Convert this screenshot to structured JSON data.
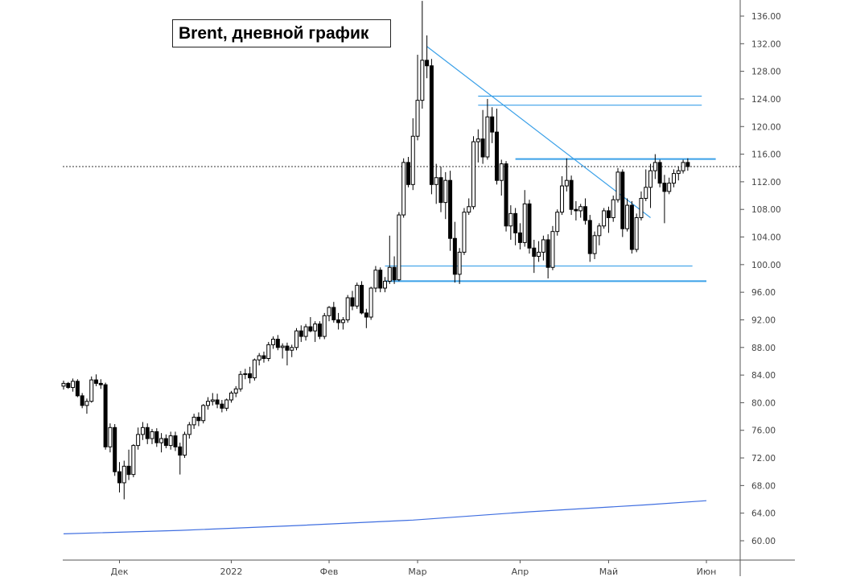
{
  "chart_data": {
    "type": "candlestick",
    "title": "Brent, дневной график",
    "y_ticks": [
      "60.00",
      "64.00",
      "68.00",
      "72.00",
      "76.00",
      "80.00",
      "84.00",
      "88.00",
      "92.00",
      "96.00",
      "100.00",
      "104.00",
      "108.00",
      "112.00",
      "116.00",
      "120.00",
      "124.00",
      "128.00",
      "132.00",
      "136.00"
    ],
    "ylim": [
      57.5,
      138.5
    ],
    "x_ticks": [
      {
        "label": "Дек",
        "index": 12
      },
      {
        "label": "2022",
        "index": 36
      },
      {
        "label": "Фев",
        "index": 57
      },
      {
        "label": "Мар",
        "index": 76
      },
      {
        "label": "Апр",
        "index": 98
      },
      {
        "label": "Май",
        "index": 117
      },
      {
        "label": "Июн",
        "index": 138
      }
    ],
    "last_price": 114.2,
    "ohlc": [
      [
        82.4,
        83.2,
        81.9,
        82.8
      ],
      [
        82.8,
        83.0,
        82.0,
        82.2
      ],
      [
        82.2,
        83.5,
        81.6,
        83.1
      ],
      [
        83.1,
        83.4,
        80.8,
        81.0
      ],
      [
        81.0,
        81.4,
        79.2,
        79.6
      ],
      [
        79.6,
        80.6,
        78.4,
        80.2
      ],
      [
        80.2,
        83.8,
        80.0,
        83.3
      ],
      [
        83.3,
        84.1,
        82.4,
        82.8
      ],
      [
        82.8,
        83.4,
        82.0,
        82.6
      ],
      [
        82.6,
        82.9,
        73.2,
        73.6
      ],
      [
        73.6,
        77.0,
        72.8,
        76.4
      ],
      [
        76.4,
        76.9,
        69.4,
        70.0
      ],
      [
        70.0,
        71.4,
        67.0,
        68.4
      ],
      [
        68.4,
        71.6,
        66.0,
        70.8
      ],
      [
        70.8,
        73.2,
        68.8,
        69.6
      ],
      [
        69.6,
        74.0,
        69.2,
        73.8
      ],
      [
        73.8,
        76.4,
        73.2,
        75.4
      ],
      [
        75.4,
        77.2,
        74.6,
        76.4
      ],
      [
        76.4,
        77.0,
        74.0,
        74.8
      ],
      [
        74.8,
        76.2,
        74.0,
        75.8
      ],
      [
        75.8,
        76.3,
        73.6,
        74.2
      ],
      [
        74.2,
        75.6,
        72.8,
        74.8
      ],
      [
        74.8,
        75.4,
        73.4,
        73.8
      ],
      [
        73.8,
        75.8,
        73.2,
        75.2
      ],
      [
        75.2,
        75.8,
        73.0,
        73.6
      ],
      [
        73.6,
        74.2,
        69.6,
        72.4
      ],
      [
        72.4,
        75.8,
        72.0,
        75.4
      ],
      [
        75.4,
        77.2,
        74.8,
        76.8
      ],
      [
        76.8,
        78.4,
        76.2,
        77.9
      ],
      [
        77.9,
        78.6,
        76.6,
        77.4
      ],
      [
        77.4,
        79.8,
        77.0,
        79.6
      ],
      [
        79.6,
        80.8,
        79.0,
        80.2
      ],
      [
        80.2,
        81.4,
        79.6,
        80.4
      ],
      [
        80.4,
        81.3,
        79.2,
        79.8
      ],
      [
        79.8,
        80.4,
        78.6,
        79.2
      ],
      [
        79.2,
        80.6,
        78.8,
        80.4
      ],
      [
        80.4,
        81.7,
        80.0,
        81.4
      ],
      [
        81.4,
        82.4,
        80.8,
        82.0
      ],
      [
        82.0,
        84.6,
        81.6,
        84.1
      ],
      [
        84.1,
        84.9,
        83.4,
        84.2
      ],
      [
        84.2,
        85.2,
        82.8,
        83.6
      ],
      [
        83.6,
        86.4,
        83.2,
        86.2
      ],
      [
        86.2,
        87.2,
        85.4,
        86.8
      ],
      [
        86.8,
        87.4,
        85.8,
        86.4
      ],
      [
        86.4,
        88.8,
        86.0,
        88.4
      ],
      [
        88.4,
        89.6,
        87.8,
        89.2
      ],
      [
        89.2,
        89.8,
        87.6,
        88.0
      ],
      [
        88.0,
        88.6,
        86.4,
        88.2
      ],
      [
        88.2,
        88.7,
        85.4,
        87.6
      ],
      [
        87.6,
        88.4,
        86.6,
        88.0
      ],
      [
        88.0,
        90.8,
        87.6,
        90.4
      ],
      [
        90.4,
        91.2,
        88.8,
        89.6
      ],
      [
        89.6,
        91.4,
        89.0,
        91.0
      ],
      [
        91.0,
        92.4,
        90.2,
        90.4
      ],
      [
        90.4,
        91.8,
        88.8,
        91.4
      ],
      [
        91.4,
        91.8,
        89.2,
        89.6
      ],
      [
        89.6,
        93.0,
        89.2,
        92.6
      ],
      [
        92.6,
        94.0,
        91.8,
        93.8
      ],
      [
        93.8,
        94.6,
        91.6,
        92.0
      ],
      [
        92.0,
        93.0,
        90.6,
        91.6
      ],
      [
        91.6,
        92.4,
        90.6,
        92.0
      ],
      [
        92.0,
        95.6,
        91.6,
        95.2
      ],
      [
        95.2,
        96.2,
        93.4,
        94.0
      ],
      [
        94.0,
        97.4,
        93.6,
        97.0
      ],
      [
        97.0,
        97.6,
        92.8,
        93.0
      ],
      [
        93.0,
        93.6,
        90.8,
        92.4
      ],
      [
        92.4,
        96.8,
        92.0,
        96.6
      ],
      [
        96.6,
        99.8,
        96.0,
        99.2
      ],
      [
        99.2,
        99.6,
        96.0,
        96.6
      ],
      [
        96.6,
        98.2,
        96.0,
        97.6
      ],
      [
        97.6,
        104.2,
        97.2,
        99.6
      ],
      [
        99.6,
        101.2,
        97.2,
        97.8
      ],
      [
        97.8,
        107.6,
        97.6,
        107.2
      ],
      [
        107.2,
        115.4,
        106.8,
        114.8
      ],
      [
        114.8,
        115.6,
        111.2,
        111.6
      ],
      [
        111.6,
        121.2,
        110.8,
        118.6
      ],
      [
        118.6,
        130.4,
        118.0,
        123.8
      ],
      [
        123.8,
        138.2,
        122.6,
        129.6
      ],
      [
        129.6,
        133.2,
        127.0,
        128.8
      ],
      [
        128.8,
        129.8,
        110.2,
        111.6
      ],
      [
        111.6,
        114.6,
        108.8,
        112.6
      ],
      [
        112.6,
        114.2,
        107.6,
        109.0
      ],
      [
        109.0,
        113.4,
        106.6,
        112.2
      ],
      [
        112.2,
        113.6,
        102.0,
        103.8
      ],
      [
        103.8,
        106.2,
        97.4,
        98.6
      ],
      [
        98.6,
        102.4,
        97.2,
        101.8
      ],
      [
        101.8,
        108.2,
        101.4,
        107.6
      ],
      [
        107.6,
        109.6,
        107.2,
        108.4
      ],
      [
        108.4,
        118.6,
        108.0,
        117.8
      ],
      [
        117.8,
        119.6,
        114.8,
        118.2
      ],
      [
        118.2,
        122.4,
        114.6,
        115.6
      ],
      [
        115.6,
        124.0,
        115.2,
        121.4
      ],
      [
        121.4,
        122.8,
        117.6,
        119.2
      ],
      [
        119.2,
        122.6,
        111.6,
        112.2
      ],
      [
        112.2,
        115.2,
        110.0,
        114.6
      ],
      [
        114.6,
        115.0,
        104.8,
        105.6
      ],
      [
        105.6,
        108.6,
        103.6,
        107.4
      ],
      [
        107.4,
        108.2,
        102.8,
        104.6
      ],
      [
        104.6,
        106.0,
        102.2,
        103.2
      ],
      [
        103.2,
        110.8,
        102.6,
        108.8
      ],
      [
        108.8,
        109.4,
        101.6,
        102.4
      ],
      [
        102.4,
        103.6,
        98.8,
        101.2
      ],
      [
        101.2,
        103.4,
        100.4,
        101.8
      ],
      [
        101.8,
        104.2,
        100.6,
        103.6
      ],
      [
        103.6,
        104.4,
        98.0,
        99.6
      ],
      [
        99.6,
        105.6,
        99.2,
        104.8
      ],
      [
        104.8,
        108.0,
        104.2,
        107.6
      ],
      [
        107.6,
        112.8,
        107.2,
        111.4
      ],
      [
        111.4,
        115.4,
        110.6,
        112.2
      ],
      [
        112.2,
        112.9,
        107.2,
        108.0
      ],
      [
        108.0,
        109.2,
        106.4,
        107.8
      ],
      [
        107.8,
        108.8,
        106.8,
        108.4
      ],
      [
        108.4,
        109.6,
        105.8,
        106.4
      ],
      [
        106.4,
        107.2,
        100.4,
        101.6
      ],
      [
        101.6,
        104.8,
        100.8,
        104.2
      ],
      [
        104.2,
        106.0,
        102.8,
        105.6
      ],
      [
        105.6,
        108.2,
        105.2,
        107.8
      ],
      [
        107.8,
        108.4,
        104.6,
        106.8
      ],
      [
        106.8,
        110.0,
        106.2,
        109.4
      ],
      [
        109.4,
        114.0,
        109.0,
        113.4
      ],
      [
        113.4,
        113.8,
        104.0,
        105.2
      ],
      [
        105.2,
        109.6,
        104.8,
        108.6
      ],
      [
        108.6,
        109.2,
        101.6,
        102.2
      ],
      [
        102.2,
        107.4,
        101.8,
        106.8
      ],
      [
        106.8,
        110.6,
        106.4,
        109.6
      ],
      [
        109.6,
        113.8,
        109.2,
        111.2
      ],
      [
        111.2,
        114.6,
        108.2,
        113.6
      ],
      [
        113.6,
        116.0,
        112.4,
        114.8
      ],
      [
        114.8,
        115.2,
        111.2,
        111.8
      ],
      [
        111.8,
        113.0,
        106.0,
        110.6
      ],
      [
        110.6,
        112.6,
        110.2,
        111.8
      ],
      [
        111.8,
        113.8,
        111.2,
        113.2
      ],
      [
        113.2,
        114.2,
        112.2,
        113.6
      ],
      [
        113.6,
        115.2,
        113.2,
        114.8
      ],
      [
        114.8,
        115.4,
        113.6,
        114.2
      ]
    ],
    "moving_average": {
      "start": 61.0,
      "end": 65.8,
      "x": [
        0,
        25,
        50,
        75,
        100,
        125,
        138
      ],
      "values": [
        61.0,
        61.5,
        62.2,
        63.0,
        64.2,
        65.2,
        65.8
      ]
    },
    "trendline": {
      "from": {
        "index": 78,
        "value": 131.6
      },
      "to": {
        "index": 126,
        "value": 106.8
      }
    },
    "horizontal_levels": [
      {
        "value": 124.4,
        "from": 89,
        "to": 137
      },
      {
        "value": 123.1,
        "from": 89,
        "to": 137
      },
      {
        "value": 115.3,
        "from": 97,
        "to": 140
      },
      {
        "value": 99.8,
        "from": 69,
        "to": 135
      },
      {
        "value": 97.6,
        "from": 69,
        "to": 138
      }
    ],
    "colors": {
      "candle": "#000000",
      "levels": "#3aa0e8",
      "moving_average": "#3f6ee0",
      "axis": "#555555"
    }
  }
}
